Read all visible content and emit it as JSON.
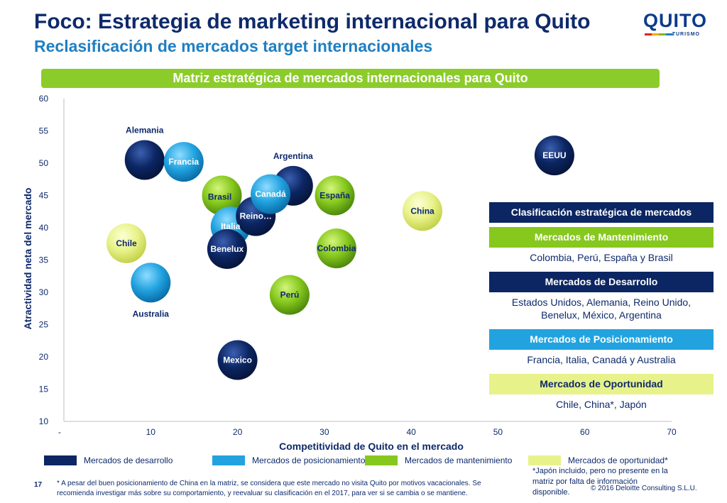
{
  "header": {
    "title": "Foco: Estrategia de marketing internacional para Quito",
    "subtitle": "Reclasificación de mercados target internacionales"
  },
  "logo": {
    "text": "QUITO",
    "sub": "TURISMO"
  },
  "banner": {
    "text": "Matriz estratégica de mercados internacionales para Quito"
  },
  "colors": {
    "desarrollo": "#0c2663",
    "posicionamiento": "#22a3e0",
    "mantenimiento": "#86c81e",
    "oportunidad": "#e8f28a",
    "text": "#0e2a6b"
  },
  "chart_data": {
    "type": "scatter",
    "title": "Matriz estratégica de mercados internacionales para Quito",
    "xlabel": "Competitividad de Quito en el mercado",
    "ylabel": "Atractividad neta del mercado",
    "xlim": [
      0,
      70
    ],
    "ylim": [
      10,
      60
    ],
    "x_ticks": [
      "-",
      "10",
      "20",
      "30",
      "40",
      "50",
      "60",
      "70"
    ],
    "y_ticks": [
      "10",
      "15",
      "20",
      "25",
      "30",
      "35",
      "40",
      "45",
      "50",
      "55",
      "60"
    ],
    "points": [
      {
        "label": "Alemania",
        "x": 9.3,
        "y": 50.5,
        "category": "desarrollo",
        "label_pos": "above"
      },
      {
        "label": "Francia",
        "x": 13.8,
        "y": 50.2,
        "category": "posicionamiento",
        "label_pos": "inside"
      },
      {
        "label": "Argentina",
        "x": 26.4,
        "y": 46.5,
        "category": "desarrollo",
        "label_pos": "above"
      },
      {
        "label": "EEUU",
        "x": 56.5,
        "y": 51.2,
        "category": "desarrollo",
        "label_pos": "inside"
      },
      {
        "label": "Brasil",
        "x": 18.2,
        "y": 45.0,
        "category": "mantenimiento",
        "label_pos": "left"
      },
      {
        "label": "España",
        "x": 31.2,
        "y": 45.0,
        "category": "mantenimiento",
        "label_pos": "inside"
      },
      {
        "label": "Italia",
        "x": 19.2,
        "y": 40.2,
        "category": "posicionamiento",
        "label_pos": "inside"
      },
      {
        "label": "Reino…",
        "x": 22.1,
        "y": 41.8,
        "category": "desarrollo",
        "label_pos": "inside"
      },
      {
        "label": "Canadá",
        "x": 23.8,
        "y": 45.2,
        "category": "posicionamiento",
        "label_pos": "inside"
      },
      {
        "label": "China",
        "x": 41.3,
        "y": 42.6,
        "category": "oportunidad",
        "label_pos": "inside"
      },
      {
        "label": "Chile",
        "x": 7.2,
        "y": 37.6,
        "category": "oportunidad",
        "label_pos": "inside"
      },
      {
        "label": "Benelux",
        "x": 18.8,
        "y": 36.7,
        "category": "desarrollo",
        "label_pos": "inside"
      },
      {
        "label": "Colombia",
        "x": 31.4,
        "y": 36.8,
        "category": "mantenimiento",
        "label_pos": "inside"
      },
      {
        "label": "Australia",
        "x": 10.0,
        "y": 31.5,
        "category": "posicionamiento",
        "label_pos": "below"
      },
      {
        "label": "Perú",
        "x": 26.0,
        "y": 29.6,
        "category": "mantenimiento",
        "label_pos": "inside"
      },
      {
        "label": "Mexico",
        "x": 20.0,
        "y": 19.5,
        "category": "desarrollo",
        "label_pos": "inside"
      }
    ],
    "legend": [
      {
        "label": "Mercados de desarrollo",
        "category": "desarrollo"
      },
      {
        "label": "Mercados de posicionamiento",
        "category": "posicionamiento"
      },
      {
        "label": "Mercados de mantenimiento",
        "category": "mantenimiento"
      },
      {
        "label": "Mercados de oportunidad*",
        "category": "oportunidad"
      }
    ]
  },
  "classification": {
    "header": "Clasificación estratégica de mercados",
    "groups": [
      {
        "title": "Mercados de Mantenimiento",
        "body": "Colombia, Perú, España y Brasil",
        "category": "mantenimiento"
      },
      {
        "title": "Mercados de Desarrollo",
        "body": "Estados Unidos, Alemania, Reino Unido, Benelux, México, Argentina",
        "category": "desarrollo"
      },
      {
        "title": "Mercados de Posicionamiento",
        "body": "Francia, Italia, Canadá y Australia",
        "category": "posicionamiento"
      },
      {
        "title": "Mercados de Oportunidad",
        "body": "Chile, China*, Japón",
        "category": "oportunidad"
      }
    ]
  },
  "footer": {
    "page": "17",
    "footnote": "* A pesar del buen posicionamiento de China en la matriz, se considera que este mercado no visita Quito por motivos vacacionales. Se recomienda investigar más sobre su comportamiento, y reevaluar su clasificación en el 2017, para ver si se cambia o se mantiene.",
    "japan_note": "*Japón incluido, pero no presente en la matriz por falta de información disponible.",
    "copyright": "© 2016 Deloitte Consulting S.L.U."
  }
}
